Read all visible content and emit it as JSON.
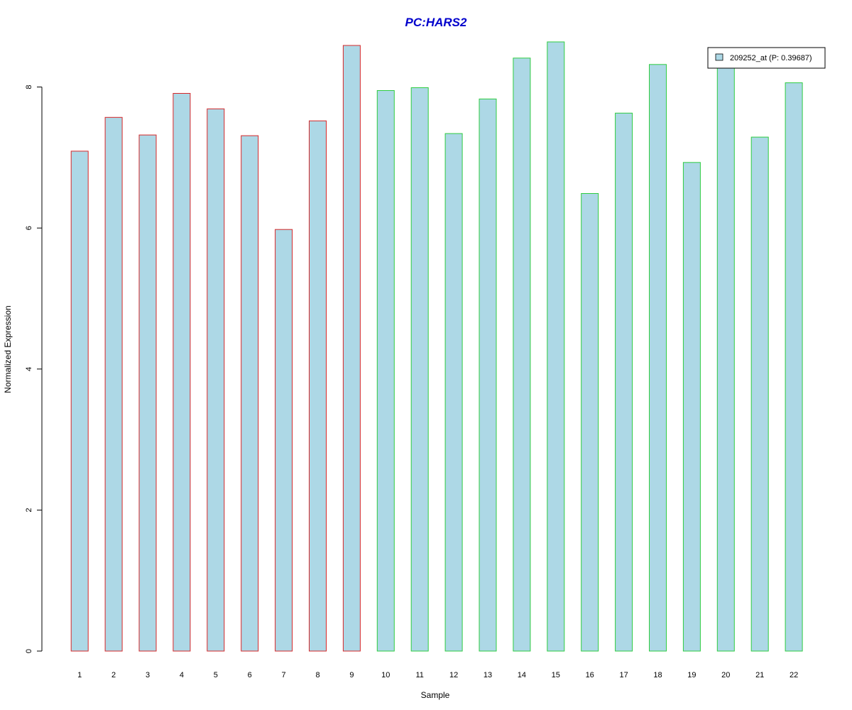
{
  "chart_data": {
    "type": "bar",
    "title": "PC:HARS2",
    "xlabel": "Sample",
    "ylabel": "Normalized Expression",
    "categories": [
      "1",
      "2",
      "3",
      "4",
      "5",
      "6",
      "7",
      "8",
      "9",
      "10",
      "11",
      "12",
      "13",
      "14",
      "15",
      "16",
      "17",
      "18",
      "19",
      "20",
      "21",
      "22"
    ],
    "series": [
      {
        "name": "209252_at (P: 0.39687)",
        "values": [
          7.09,
          7.57,
          7.32,
          7.91,
          7.69,
          7.31,
          5.98,
          7.52,
          8.59,
          7.95,
          7.99,
          7.34,
          7.83,
          8.41,
          8.64,
          6.49,
          7.63,
          8.32,
          6.93,
          8.33,
          7.29,
          8.06
        ]
      }
    ],
    "group_border_colors": [
      "#d62728",
      "#d62728",
      "#d62728",
      "#d62728",
      "#d62728",
      "#d62728",
      "#d62728",
      "#d62728",
      "#d62728",
      "#2ecc40",
      "#2ecc40",
      "#2ecc40",
      "#2ecc40",
      "#2ecc40",
      "#2ecc40",
      "#2ecc40",
      "#2ecc40",
      "#2ecc40",
      "#2ecc40",
      "#2ecc40",
      "#2ecc40",
      "#2ecc40"
    ],
    "bar_fill": "#add8e6",
    "title_color": "#0000cc",
    "ylim": [
      0,
      8.64
    ],
    "yticks": [
      0,
      2,
      4,
      6,
      8
    ],
    "legend_position": "top-right",
    "grid": false
  }
}
